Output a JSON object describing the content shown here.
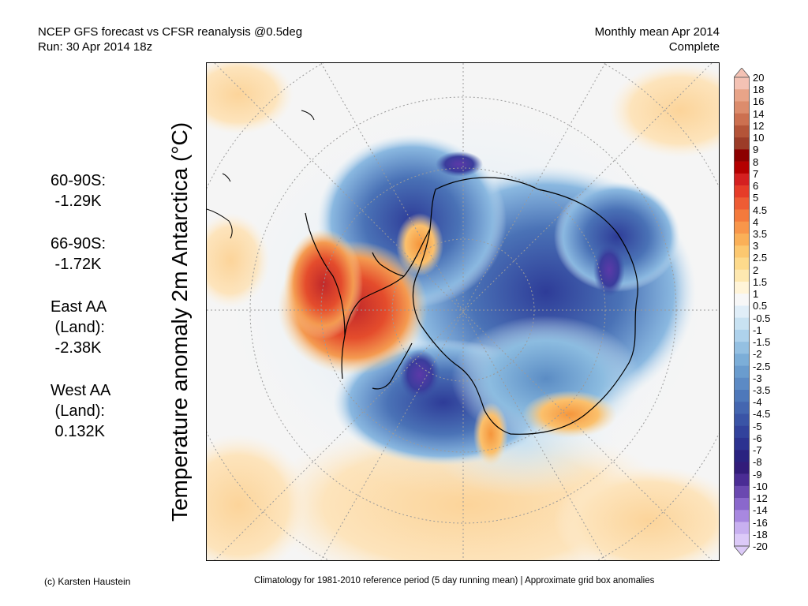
{
  "header": {
    "title_line1": "NCEP GFS forecast vs CFSR reanalysis @0.5deg",
    "title_line2": "Run: 30 Apr 2014 18z",
    "period_line1": "Monthly mean Apr 2014",
    "period_line2": "Complete"
  },
  "stats": [
    {
      "label": "60-90S:",
      "value": " -1.29K"
    },
    {
      "label": "66-90S:",
      "value": " -1.72K"
    },
    {
      "label": "East AA\n (Land):",
      "value": " -2.38K"
    },
    {
      "label": "West AA\n (Land):",
      "value": " 0.132K"
    }
  ],
  "y_label": "Temperature anomaly 2m Antarctica (°C)",
  "colorbar": {
    "labels": [
      "20",
      "18",
      "16",
      "14",
      "12",
      "10",
      "9",
      "8",
      "7",
      "6",
      "5",
      "4.5",
      "4",
      "3.5",
      "3",
      "2.5",
      "2",
      "1.5",
      "1",
      "0.5",
      "-0.5",
      "-1",
      "-1.5",
      "-2",
      "-2.5",
      "-3",
      "-3.5",
      "-4",
      "-4.5",
      "-5",
      "-6",
      "-7",
      "-8",
      "-9",
      "-10",
      "-12",
      "-14",
      "-16",
      "-18",
      "-20"
    ],
    "colors": [
      "#f4c2b4",
      "#e8a488",
      "#dc8c6c",
      "#cc7050",
      "#b45438",
      "#9c3c28",
      "#8c0000",
      "#b40000",
      "#d42020",
      "#e63c28",
      "#ee5c34",
      "#f47a3c",
      "#f8964a",
      "#fab058",
      "#fcc870",
      "#fdda8c",
      "#fee8b0",
      "#fff4d8",
      "#f7f7f7",
      "#e0eef8",
      "#c8e2f2",
      "#aed2ec",
      "#94c0e2",
      "#7caed8",
      "#6a9cce",
      "#5c8ac4",
      "#4e78ba",
      "#4466b0",
      "#3a54a6",
      "#32429c",
      "#2c3290",
      "#2a2280",
      "#321c7a",
      "#4a2c94",
      "#6a48b0",
      "#8a68cc",
      "#a888e0",
      "#c8b0f0",
      "#dccaf8"
    ],
    "top_tip_color": "#f4c2b4",
    "bottom_tip_color": "#dccaf8"
  },
  "footer": {
    "credit": "(c) Karsten Haustein",
    "note": "Climatology for 1981-2010 reference period (5 day running mean) | Approximate grid box anomalies"
  }
}
